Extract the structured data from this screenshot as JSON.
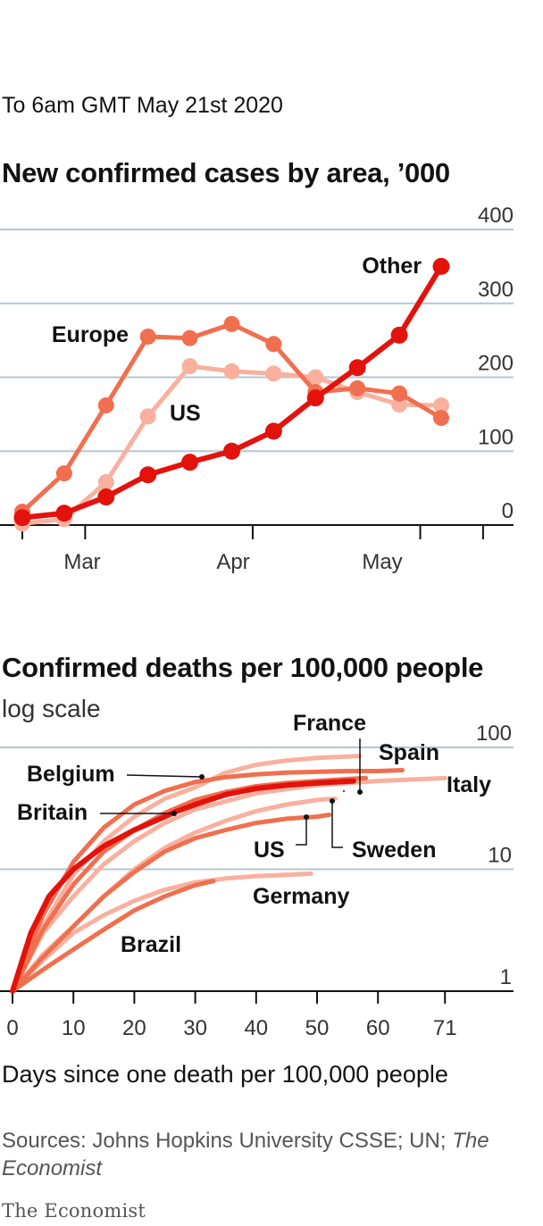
{
  "subtitle": "To 6am GMT May 21st 2020",
  "source": {
    "prefix": "Sources: Johns Hopkins University CSSE; UN; ",
    "italic": "The Economist"
  },
  "brand": "The Economist",
  "colors": {
    "other": "#e3120b",
    "europe": "#f06f4f",
    "us": "#f9b09e",
    "grid": "#b6c7d1",
    "axis": "#121212"
  },
  "chart_data": [
    {
      "type": "line",
      "title": "New confirmed cases by area, ’000",
      "ylim": [
        0,
        400
      ],
      "y_ticks": [
        0,
        100,
        200,
        300,
        400
      ],
      "x_ticks": [
        "Mar",
        "Apr",
        "May"
      ],
      "x_tick_positions": [
        1.5,
        5.5,
        9.5
      ],
      "grid": true,
      "series": [
        {
          "name": "US",
          "color": "#f9b09e",
          "x": [
            0,
            1,
            2,
            3,
            4,
            5,
            6,
            7,
            8,
            9,
            10,
            11
          ],
          "values": [
            2,
            8,
            58,
            147,
            215,
            208,
            205,
            200,
            180,
            163,
            162,
            160
          ]
        },
        {
          "name": "Europe",
          "color": "#f06f4f",
          "x": [
            0,
            1,
            2,
            3,
            4,
            5,
            6,
            7,
            8,
            9,
            10,
            11
          ],
          "values": [
            18,
            70,
            162,
            255,
            253,
            272,
            245,
            180,
            185,
            178,
            145,
            145
          ]
        },
        {
          "name": "Other",
          "color": "#e3120b",
          "x": [
            0,
            1,
            2,
            3,
            4,
            5,
            6,
            7,
            8,
            9,
            10,
            11
          ],
          "values": [
            10,
            16,
            38,
            68,
            85,
            100,
            127,
            172,
            213,
            257,
            350,
            350
          ]
        }
      ]
    },
    {
      "type": "line",
      "title": "Confirmed deaths per 100,000 people",
      "subtitle": "log scale",
      "xlabel": "Days since one death per 100,000 people",
      "x_ticks": [
        0,
        10,
        20,
        30,
        40,
        50,
        60,
        71
      ],
      "y_ticks": [
        1,
        10,
        100
      ],
      "y_scale": "log",
      "ylim": [
        1,
        120
      ],
      "xlim": [
        0,
        71
      ],
      "grid": true,
      "series": [
        {
          "name": "Belgium",
          "color": "#f9b09e",
          "x": [
            0,
            5,
            10,
            15,
            20,
            25,
            30,
            35,
            40,
            45,
            50,
            57
          ],
          "values": [
            1,
            3.4,
            9,
            17,
            27,
            38,
            47,
            62,
            72,
            78,
            82,
            85
          ]
        },
        {
          "name": "Spain",
          "color": "#f06f4f",
          "x": [
            0,
            5,
            10,
            15,
            20,
            25,
            30,
            35,
            40,
            45,
            50,
            55,
            60,
            64
          ],
          "values": [
            1,
            4.2,
            11.5,
            22,
            34,
            44,
            52,
            57,
            60,
            62,
            63,
            64,
            64,
            65
          ]
        },
        {
          "name": "Italy",
          "color": "#f9b09e",
          "x": [
            0,
            5,
            10,
            15,
            20,
            25,
            30,
            40,
            50,
            60,
            71
          ],
          "values": [
            1,
            3,
            6,
            11,
            17,
            24,
            31,
            42,
            49,
            53,
            56
          ]
        },
        {
          "name": "France",
          "color": "#f06f4f",
          "x": [
            0,
            5,
            10,
            15,
            20,
            25,
            30,
            35,
            40,
            45,
            50,
            55,
            58
          ],
          "values": [
            1,
            3.2,
            7.5,
            14,
            21,
            29,
            37,
            43,
            48,
            51,
            53,
            55,
            56
          ]
        },
        {
          "name": "Sweden",
          "color": "#f9b09e",
          "x": [
            0,
            5,
            10,
            15,
            20,
            25,
            30,
            35,
            40,
            45,
            50,
            53
          ],
          "values": [
            1,
            2,
            3.4,
            6,
            10,
            15,
            20,
            25,
            30,
            34,
            37,
            38
          ]
        },
        {
          "name": "US",
          "color": "#f06f4f",
          "x": [
            0,
            5,
            10,
            15,
            20,
            25,
            30,
            35,
            40,
            45,
            50,
            52
          ],
          "values": [
            1,
            1.9,
            3.4,
            6,
            9.5,
            14,
            18,
            21,
            24,
            26,
            27,
            28
          ]
        },
        {
          "name": "Britain",
          "color": "#e3120b",
          "x": [
            0,
            3,
            6,
            10,
            15,
            20,
            25,
            27,
            30,
            35,
            40,
            45,
            50,
            56
          ],
          "values": [
            1,
            3,
            6,
            10,
            15.5,
            21,
            27,
            30,
            34,
            41,
            46,
            49,
            51,
            53
          ]
        },
        {
          "name": "Germany",
          "color": "#f9b09e",
          "x": [
            0,
            5,
            10,
            15,
            20,
            25,
            30,
            35,
            40,
            45,
            49
          ],
          "values": [
            1,
            1.8,
            3,
            4.2,
            5.5,
            6.8,
            7.8,
            8.4,
            8.8,
            9,
            9.2
          ]
        },
        {
          "name": "Brazil",
          "color": "#f06f4f",
          "x": [
            0,
            5,
            10,
            15,
            20,
            25,
            30,
            33
          ],
          "values": [
            1,
            1.5,
            2.2,
            3.2,
            4.6,
            6,
            7.4,
            8
          ]
        }
      ],
      "labels": [
        "France",
        "Spain",
        "Italy",
        "Belgium",
        "Britain",
        "US",
        "Sweden",
        "Germany",
        "Brazil"
      ]
    }
  ]
}
